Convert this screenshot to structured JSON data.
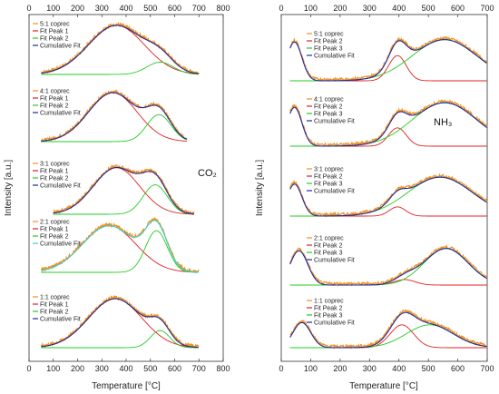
{
  "colors": {
    "exp": "#f0901e",
    "peak1": "#e02020",
    "peak2": "#22cc22",
    "cumulative": "#1a2aa6",
    "alt_cumulative": "#35d4d4"
  },
  "chart_data": [
    {
      "type": "line",
      "gas_label": "CO₂",
      "xlabel": "Temperature [°C]",
      "ylabel": "Intensity [a.u.]",
      "xlim": [
        0,
        800
      ],
      "xticks": [
        0,
        100,
        200,
        300,
        400,
        500,
        600,
        700,
        800
      ],
      "panels": [
        {
          "legend": [
            "5:1 coprec",
            "Fit Peak 1",
            "Fit Peak 2",
            "Cumulative Fit"
          ],
          "range": [
            50,
            700
          ],
          "peak1": {
            "center": 360,
            "height": 1.0,
            "width": 115
          },
          "peak2": {
            "center": 540,
            "height": 0.25,
            "width": 55
          },
          "cumulative_color_key": "cumulative"
        },
        {
          "legend": [
            "4:1 coprec",
            "Fit Peak 1",
            "Fit Peak 2",
            "Cumulative Fit"
          ],
          "range": [
            50,
            650
          ],
          "peak1": {
            "center": 345,
            "height": 1.0,
            "width": 100
          },
          "peak2": {
            "center": 535,
            "height": 0.55,
            "width": 50
          },
          "cumulative_color_key": "cumulative"
        },
        {
          "legend": [
            "3:1 coprec",
            "Fit Peak 1",
            "Fit Peak 2",
            "Cumulative Fit"
          ],
          "range": [
            100,
            680
          ],
          "peak1": {
            "center": 360,
            "height": 0.95,
            "width": 95
          },
          "peak2": {
            "center": 520,
            "height": 0.6,
            "width": 50
          },
          "cumulative_color_key": "cumulative"
        },
        {
          "legend": [
            "2:1 coprec",
            "Fit Peak 1",
            "Fit Peak 2",
            "Cumulative Fit"
          ],
          "range": [
            50,
            700
          ],
          "peak1": {
            "center": 330,
            "height": 0.95,
            "width": 110
          },
          "peak2": {
            "center": 525,
            "height": 0.85,
            "width": 45
          },
          "cumulative_color_key": "alt_cumulative"
        },
        {
          "legend": [
            "1:1 coprec",
            "Fit Peak 1",
            "Fit Peak 2",
            "Cumulative Fit"
          ],
          "range": [
            50,
            700
          ],
          "peak1": {
            "center": 355,
            "height": 1.0,
            "width": 110
          },
          "peak2": {
            "center": 540,
            "height": 0.35,
            "width": 40
          },
          "cumulative_color_key": "cumulative"
        }
      ]
    },
    {
      "type": "line",
      "gas_label": "NH₃",
      "xlabel": "Temperature [°C]",
      "ylabel": "Intensity [a.u.]",
      "xlim": [
        0,
        700
      ],
      "xticks": [
        0,
        100,
        200,
        300,
        400,
        500,
        600,
        700
      ],
      "panels": [
        {
          "legend": [
            "5:1 coprec",
            "Fit Peak 2",
            "Fit Peak 3",
            "Cumulative Fit"
          ],
          "range": [
            30,
            700
          ],
          "peak_low": {
            "center": 45,
            "height": 0.85,
            "width": 25
          },
          "peak2": {
            "center": 395,
            "height": 0.55,
            "width": 30
          },
          "peak3": {
            "center": 555,
            "height": 0.9,
            "width": 110
          }
        },
        {
          "legend": [
            "4:1 coprec",
            "Fit Peak 2",
            "Fit Peak 3",
            "Cumulative Fit"
          ],
          "range": [
            30,
            700
          ],
          "peak_low": {
            "center": 45,
            "height": 0.85,
            "width": 25
          },
          "peak2": {
            "center": 395,
            "height": 0.4,
            "width": 30
          },
          "peak3": {
            "center": 555,
            "height": 0.95,
            "width": 110
          }
        },
        {
          "legend": [
            "3:1 coprec",
            "Fit Peak 2",
            "Fit Peak 3",
            "Cumulative Fit"
          ],
          "range": [
            30,
            700
          ],
          "peak_low": {
            "center": 45,
            "height": 0.7,
            "width": 25
          },
          "peak2": {
            "center": 395,
            "height": 0.2,
            "width": 28
          },
          "peak3": {
            "center": 540,
            "height": 0.85,
            "width": 110
          }
        },
        {
          "legend": [
            "2:1 coprec",
            "Fit Peak 2",
            "Fit Peak 3",
            "Cumulative Fit"
          ],
          "range": [
            30,
            700
          ],
          "peak_low": {
            "center": 60,
            "height": 0.75,
            "width": 30
          },
          "peak2": {
            "center": 420,
            "height": 0.12,
            "width": 35
          },
          "peak3": {
            "center": 560,
            "height": 0.8,
            "width": 75
          }
        },
        {
          "legend": [
            "1:1 coprec",
            "Fit Peak 2",
            "Fit Peak 3",
            "Cumulative Fit"
          ],
          "range": [
            30,
            700
          ],
          "peak_low": {
            "center": 70,
            "height": 0.55,
            "width": 30
          },
          "peak2": {
            "center": 410,
            "height": 0.5,
            "width": 40
          },
          "peak3": {
            "center": 505,
            "height": 0.5,
            "width": 80
          }
        }
      ]
    }
  ]
}
